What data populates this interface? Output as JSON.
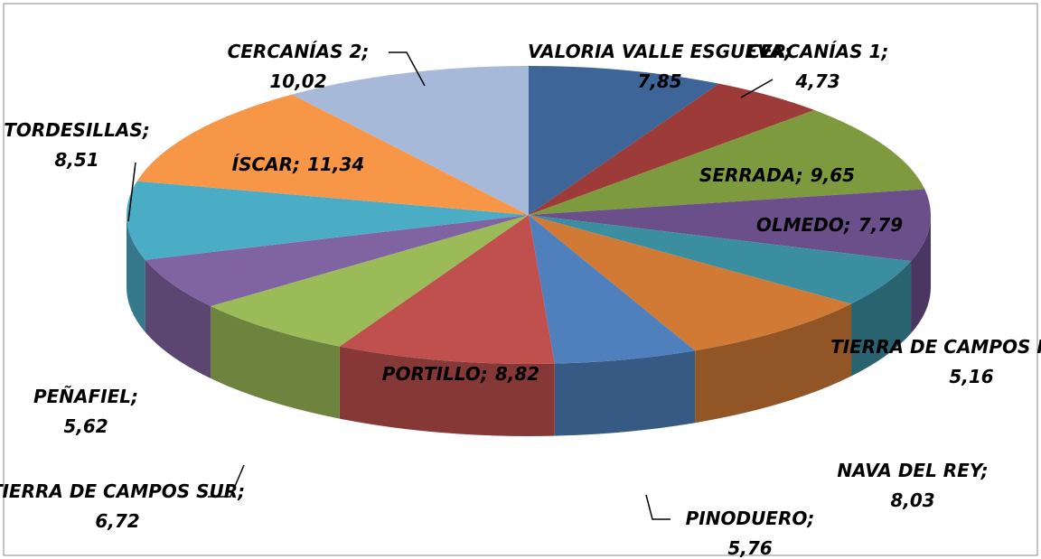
{
  "chart_data": {
    "type": "pie3d",
    "categories": [
      "VALORIA VALLE ESGUEVA",
      "CERCANÍAS 1",
      "SERRADA",
      "OLMEDO",
      "TIERRA DE CAMPOS NORTE",
      "NAVA DEL REY",
      "PINODUERO",
      "PORTILLO",
      "TIERRA DE CAMPOS SUR",
      "PEÑAFIEL",
      "TORDESILLAS",
      "ÍSCAR",
      "CERCANÍAS 2"
    ],
    "values": [
      7.85,
      4.73,
      9.65,
      7.79,
      5.16,
      8.03,
      5.76,
      8.82,
      6.72,
      5.62,
      8.51,
      11.34,
      10.02
    ],
    "value_labels": [
      "7,85",
      "4,73",
      "9,65",
      "7,79",
      "5,16",
      "8,03",
      "5,76",
      "8,82",
      "6,72",
      "5,62",
      "8,51",
      "11,34",
      "10,02"
    ],
    "label_separator": ";",
    "colors": [
      "#3d6598",
      "#9c3b38",
      "#7e9a3e",
      "#6a4f8a",
      "#3b8ea0",
      "#d07a35",
      "#4f80bd",
      "#c0504d",
      "#9bbb59",
      "#8064a2",
      "#4bacc6",
      "#f79646",
      "#a7b9d9"
    ]
  }
}
